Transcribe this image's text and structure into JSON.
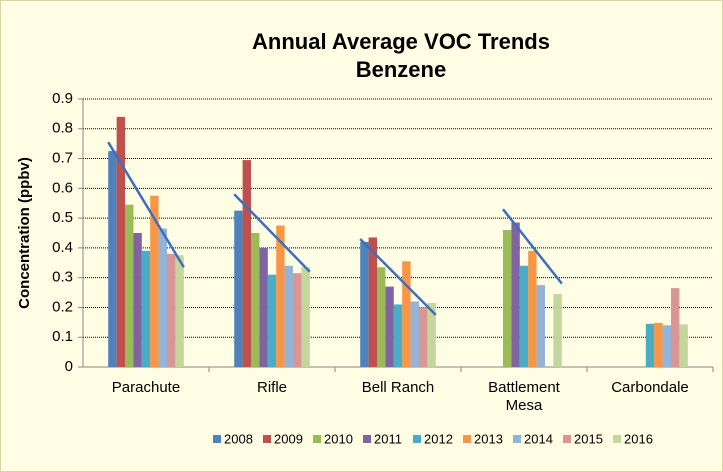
{
  "chart_data": {
    "type": "bar",
    "title": "Annual Average VOC Trends",
    "subtitle": "Benzene",
    "y_label": "Concentration (ppbv)",
    "categories": [
      "Parachute",
      "Rifle",
      "Bell Ranch",
      "Battlement Mesa",
      "Carbondale"
    ],
    "series": [
      {
        "name": "2008",
        "color": "#4f81bd",
        "values": [
          0.725,
          0.525,
          0.42,
          null,
          null
        ]
      },
      {
        "name": "2009",
        "color": "#c0504d",
        "values": [
          0.84,
          0.695,
          0.435,
          null,
          null
        ]
      },
      {
        "name": "2010",
        "color": "#9bbb59",
        "values": [
          0.545,
          0.45,
          0.335,
          0.46,
          null
        ]
      },
      {
        "name": "2011",
        "color": "#8064a2",
        "values": [
          0.45,
          0.4,
          0.27,
          0.485,
          null
        ]
      },
      {
        "name": "2012",
        "color": "#4bacc6",
        "values": [
          0.39,
          0.31,
          0.21,
          0.34,
          0.145
        ]
      },
      {
        "name": "2013",
        "color": "#f79646",
        "values": [
          0.575,
          0.475,
          0.355,
          0.39,
          0.148
        ]
      },
      {
        "name": "2014",
        "color": "#95b3d7",
        "values": [
          0.465,
          0.34,
          0.22,
          0.275,
          0.14
        ]
      },
      {
        "name": "2015",
        "color": "#d99694",
        "values": [
          0.38,
          0.315,
          0.2,
          null,
          0.265
        ]
      },
      {
        "name": "2016",
        "color": "#c3d69b",
        "values": [
          0.375,
          0.335,
          0.215,
          0.245,
          0.143
        ]
      }
    ],
    "trendlines": {
      "color": "#3c6fbe",
      "start": [
        0.755,
        0.58,
        0.43,
        0.53,
        null
      ],
      "end": [
        0.335,
        0.32,
        0.175,
        0.28,
        null
      ]
    },
    "ylim": [
      0,
      0.9
    ],
    "yticks": [
      0,
      0.1,
      0.2,
      0.3,
      0.4,
      0.5,
      0.6,
      0.7,
      0.8,
      0.9
    ],
    "grid": true
  }
}
